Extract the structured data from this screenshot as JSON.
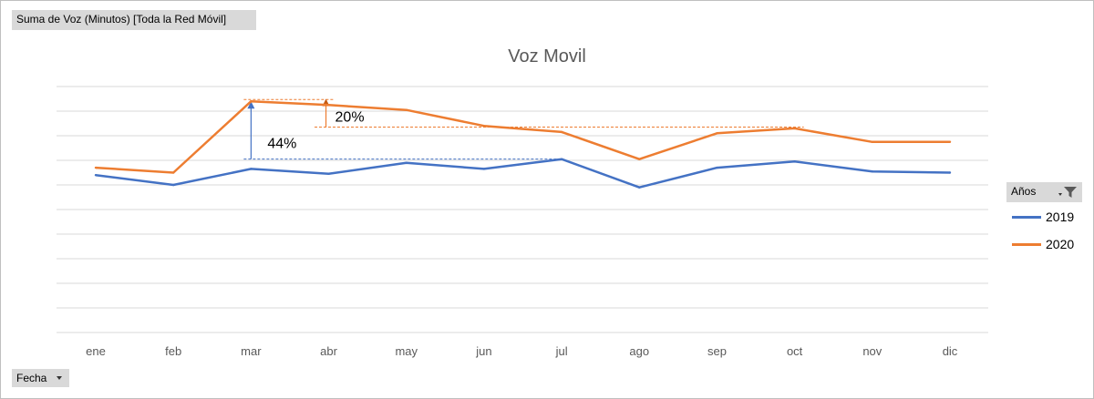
{
  "pivot": {
    "measure_button": "Suma de Voz (Minutos) [Toda la Red Móvil]",
    "axis_button": "Fecha",
    "legend_button": "Años"
  },
  "colors": {
    "series_2019": "#4472c4",
    "series_2020": "#ed7d31",
    "gridline": "#d9d9d9",
    "field_button_bg": "#d9d9d9"
  },
  "icons": {
    "legend_filter": "filter-icon",
    "axis_dropdown": "chevron-down-icon"
  },
  "chart_data": {
    "type": "line",
    "title": "Voz  Movil",
    "categories": [
      "ene",
      "feb",
      "mar",
      "abr",
      "may",
      "jun",
      "jul",
      "ago",
      "sep",
      "oct",
      "nov",
      "dic"
    ],
    "ylim": [
      0,
      10
    ],
    "y_tick_labels_shown": false,
    "grid": true,
    "legend_position": "right",
    "series": [
      {
        "name": "2019",
        "values": [
          6.4,
          6.0,
          6.65,
          6.45,
          6.9,
          6.65,
          7.05,
          5.9,
          6.7,
          6.95,
          6.55,
          6.5
        ]
      },
      {
        "name": "2020",
        "values": [
          6.7,
          6.5,
          9.4,
          9.25,
          9.05,
          8.4,
          8.15,
          7.05,
          8.1,
          8.3,
          7.75,
          7.75
        ]
      }
    ],
    "annotations": [
      {
        "label": "44%",
        "category": "mar",
        "from": 7.05,
        "to": 9.4,
        "series_color": "series_2019"
      },
      {
        "label": "20%",
        "category": "abr",
        "from": 8.35,
        "to": 9.5,
        "series_color": "series_2020"
      }
    ]
  }
}
